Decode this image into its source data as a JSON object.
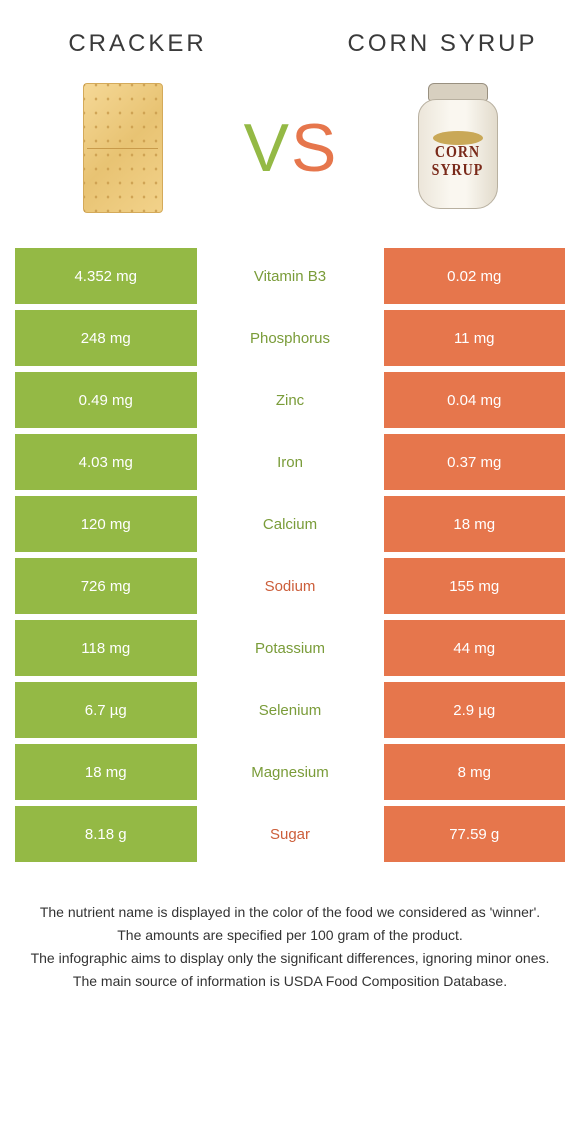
{
  "colors": {
    "left": "#94b945",
    "right": "#e6764c",
    "left_dark": "#7a9c39",
    "right_dark": "#cc5e3a",
    "text_dark": "#333333"
  },
  "header": {
    "left_title": "CRACKER",
    "right_title": "CORN SYRUP",
    "vs_v": "V",
    "vs_s": "S"
  },
  "jar": {
    "line1": "CORN",
    "line2": "SYRUP"
  },
  "table": {
    "rows": [
      {
        "left": "4.352 mg",
        "label": "Vitamin B3",
        "right": "0.02 mg",
        "winner": "left"
      },
      {
        "left": "248 mg",
        "label": "Phosphorus",
        "right": "11 mg",
        "winner": "left"
      },
      {
        "left": "0.49 mg",
        "label": "Zinc",
        "right": "0.04 mg",
        "winner": "left"
      },
      {
        "left": "4.03 mg",
        "label": "Iron",
        "right": "0.37 mg",
        "winner": "left"
      },
      {
        "left": "120 mg",
        "label": "Calcium",
        "right": "18 mg",
        "winner": "left"
      },
      {
        "left": "726 mg",
        "label": "Sodium",
        "right": "155 mg",
        "winner": "right"
      },
      {
        "left": "118 mg",
        "label": "Potassium",
        "right": "44 mg",
        "winner": "left"
      },
      {
        "left": "6.7 µg",
        "label": "Selenium",
        "right": "2.9 µg",
        "winner": "left"
      },
      {
        "left": "18 mg",
        "label": "Magnesium",
        "right": "8 mg",
        "winner": "left"
      },
      {
        "left": "8.18 g",
        "label": "Sugar",
        "right": "77.59 g",
        "winner": "right"
      }
    ]
  },
  "footer": {
    "l1": "The nutrient name is displayed in the color of the food we considered as 'winner'.",
    "l2": "The amounts are specified per 100 gram of the product.",
    "l3": "The infographic aims to display only the significant differences, ignoring minor ones.",
    "l4": "The main source of information is USDA Food Composition Database."
  }
}
